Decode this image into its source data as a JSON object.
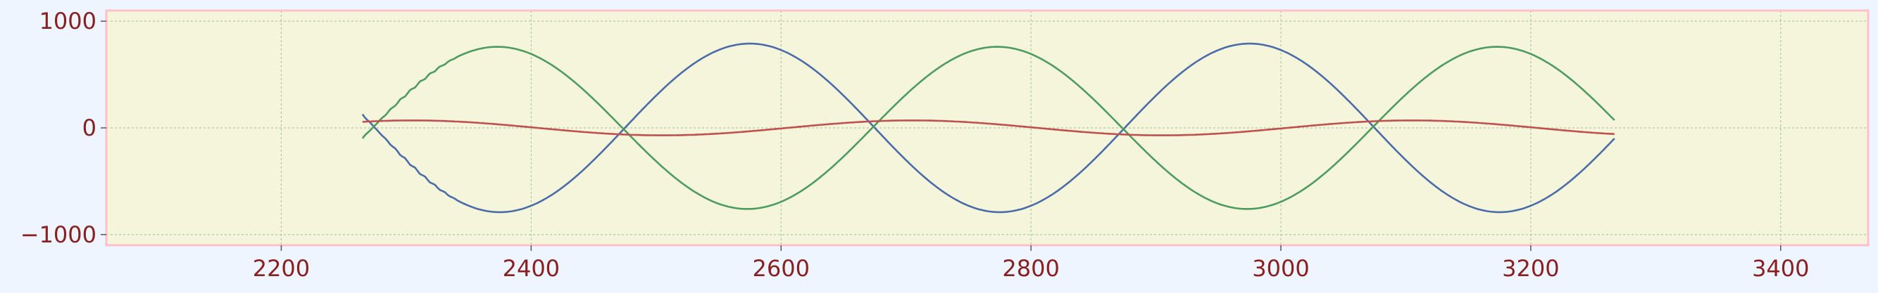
{
  "chart_data": {
    "type": "line",
    "title": "",
    "xlabel": "",
    "ylabel": "",
    "xlim": [
      2060,
      3470
    ],
    "ylim": [
      -1100,
      1100
    ],
    "x_ticks": [
      2200,
      2400,
      2600,
      2800,
      3000,
      3200,
      3400
    ],
    "x_tick_labels": [
      "2200",
      "2400",
      "2600",
      "2800",
      "3000",
      "3200",
      "3400"
    ],
    "y_ticks": [
      -1000,
      0,
      1000
    ],
    "y_tick_labels": [
      "−1000",
      "0",
      "1000"
    ],
    "grid": true,
    "legend": "none",
    "x_range": [
      2265,
      3267
    ],
    "series": [
      {
        "color": "#4a6ca8",
        "amplitude": 790,
        "period": 400,
        "peak_at": 2575,
        "start_ripple": true
      },
      {
        "color": "#4d9c5f",
        "amplitude": 760,
        "period": 400,
        "peak_at": 2373,
        "start_ripple": true
      },
      {
        "color": "#c0504d",
        "amplitude": 70,
        "period": 400,
        "peak_at": 2305,
        "start_ripple": false
      }
    ],
    "colors": {
      "figure_bg": "#eef5fe",
      "plot_bg": "#f5f5dc",
      "frame": "#ffc0cb",
      "tick_label": "#8b1e1e",
      "grid": "#9abf9a"
    }
  }
}
